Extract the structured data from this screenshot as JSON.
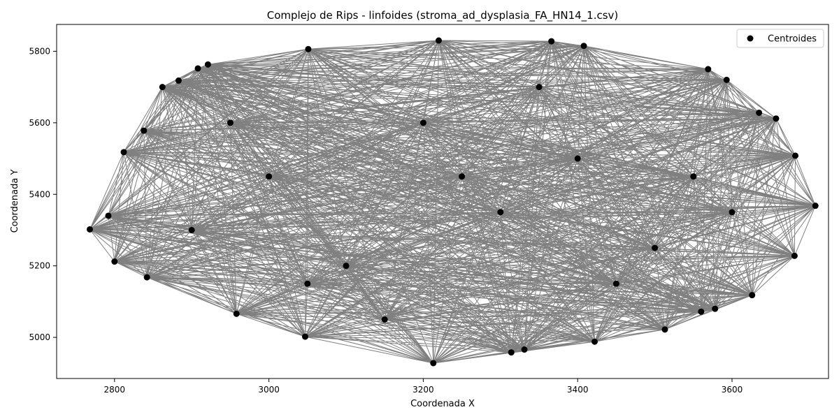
{
  "chart_data": {
    "type": "scatter",
    "title": "Complejo de Rips - linfoides (stroma_ad_dysplasia_FA_HN14_1.csv)",
    "xlabel": "Coordenada X",
    "ylabel": "Coordenada Y",
    "xlim": [
      2725,
      3725
    ],
    "ylim": [
      4885,
      5875
    ],
    "xticks": [
      2800,
      3000,
      3200,
      3400,
      3600
    ],
    "yticks": [
      5000,
      5200,
      5400,
      5600,
      5800
    ],
    "grid": false,
    "legend": {
      "position": "top-right",
      "entries": [
        "Centroides"
      ]
    },
    "series": [
      {
        "name": "Centroides",
        "color": "#000000",
        "edge_color": "#808080",
        "points": [
          {
            "x": 2768,
            "y": 5302
          },
          {
            "x": 2800,
            "y": 5212
          },
          {
            "x": 2842,
            "y": 5168
          },
          {
            "x": 2958,
            "y": 5066
          },
          {
            "x": 3047,
            "y": 5002
          },
          {
            "x": 3213,
            "y": 4928
          },
          {
            "x": 3314,
            "y": 4958
          },
          {
            "x": 3331,
            "y": 4966
          },
          {
            "x": 3422,
            "y": 4988
          },
          {
            "x": 3513,
            "y": 5022
          },
          {
            "x": 3560,
            "y": 5072
          },
          {
            "x": 3578,
            "y": 5080
          },
          {
            "x": 3626,
            "y": 5118
          },
          {
            "x": 3681,
            "y": 5228
          },
          {
            "x": 3708,
            "y": 5368
          },
          {
            "x": 3682,
            "y": 5508
          },
          {
            "x": 3657,
            "y": 5612
          },
          {
            "x": 3635,
            "y": 5628
          },
          {
            "x": 3593,
            "y": 5720
          },
          {
            "x": 3569,
            "y": 5750
          },
          {
            "x": 3408,
            "y": 5815
          },
          {
            "x": 3366,
            "y": 5828
          },
          {
            "x": 3220,
            "y": 5830
          },
          {
            "x": 3051,
            "y": 5806
          },
          {
            "x": 2921,
            "y": 5763
          },
          {
            "x": 2908,
            "y": 5752
          },
          {
            "x": 2883,
            "y": 5718
          },
          {
            "x": 2862,
            "y": 5700
          },
          {
            "x": 2838,
            "y": 5578
          },
          {
            "x": 2812,
            "y": 5518
          },
          {
            "x": 2792,
            "y": 5340
          },
          {
            "x": 2900,
            "y": 5300
          },
          {
            "x": 3000,
            "y": 5450
          },
          {
            "x": 3100,
            "y": 5200
          },
          {
            "x": 3200,
            "y": 5600
          },
          {
            "x": 3300,
            "y": 5350
          },
          {
            "x": 3400,
            "y": 5500
          },
          {
            "x": 3500,
            "y": 5250
          },
          {
            "x": 3550,
            "y": 5450
          },
          {
            "x": 3150,
            "y": 5050
          },
          {
            "x": 3350,
            "y": 5700
          },
          {
            "x": 2950,
            "y": 5600
          },
          {
            "x": 3050,
            "y": 5150
          },
          {
            "x": 3250,
            "y": 5450
          },
          {
            "x": 3450,
            "y": 5150
          },
          {
            "x": 3600,
            "y": 5350
          }
        ]
      }
    ]
  }
}
